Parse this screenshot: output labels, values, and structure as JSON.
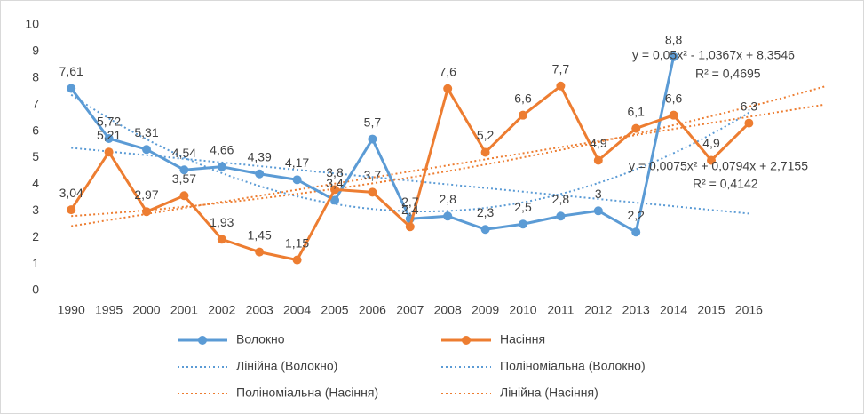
{
  "chart_data": {
    "type": "line",
    "categories": [
      "1990",
      "1995",
      "2000",
      "2001",
      "2002",
      "2003",
      "2004",
      "2005",
      "2006",
      "2007",
      "2008",
      "2009",
      "2010",
      "2011",
      "2012",
      "2013",
      "2014",
      "2015",
      "2016"
    ],
    "series": [
      {
        "name": "Волокно",
        "color": "#5b9bd5",
        "values": [
          7.61,
          5.72,
          5.31,
          4.54,
          4.66,
          4.39,
          4.17,
          3.4,
          5.7,
          2.7,
          2.8,
          2.3,
          2.5,
          2.8,
          3,
          2.2,
          8.8,
          null,
          null
        ],
        "value_labels": [
          "7,61",
          "5,72",
          "5,31",
          "4,54",
          "4,66",
          "4,39",
          "4,17",
          "3,4",
          "5,7",
          "2,7",
          "2,8",
          "2,3",
          "2,5",
          "2,8",
          "3",
          "2,2",
          "8,8",
          null,
          null
        ]
      },
      {
        "name": "Насіння",
        "color": "#ed7d31",
        "values": [
          3.04,
          5.21,
          2.97,
          3.57,
          1.93,
          1.45,
          1.15,
          3.8,
          3.7,
          2.4,
          7.6,
          5.2,
          6.6,
          7.7,
          4.9,
          6.1,
          6.6,
          4.9,
          6.3
        ],
        "value_labels": [
          "3,04",
          "5,21",
          "2,97",
          "3,57",
          "1,93",
          "1,45",
          "1,15",
          "3,8",
          "3,7",
          "2,4",
          "7,6",
          "5,2",
          "6,6",
          "7,7",
          "4,9",
          "6,1",
          "6,6",
          "4,9",
          "6,3"
        ]
      }
    ],
    "trendlines": [
      {
        "name": "Лінійна (Волокно)",
        "series": 0,
        "kind": "linear",
        "color": "#5b9bd5"
      },
      {
        "name": "Поліноміальна (Волокно)",
        "series": 0,
        "kind": "polynomial",
        "color": "#5b9bd5"
      },
      {
        "name": "Поліноміальна (Насіння)",
        "series": 1,
        "kind": "polynomial",
        "color": "#ed7d31"
      },
      {
        "name": "Лінійна (Насіння)",
        "series": 1,
        "kind": "linear",
        "color": "#ed7d31"
      }
    ],
    "annotations": [
      "y = 0,05x² - 1,0367x + 8,3546",
      "R² = 0,4695",
      "y = 0,0075x² + 0,0794x + 2,7155",
      "R² = 0,4142"
    ],
    "ylim": [
      0,
      10
    ],
    "yticks": [
      0,
      1,
      2,
      3,
      4,
      5,
      6,
      7,
      8,
      9,
      10
    ],
    "grid": false
  }
}
